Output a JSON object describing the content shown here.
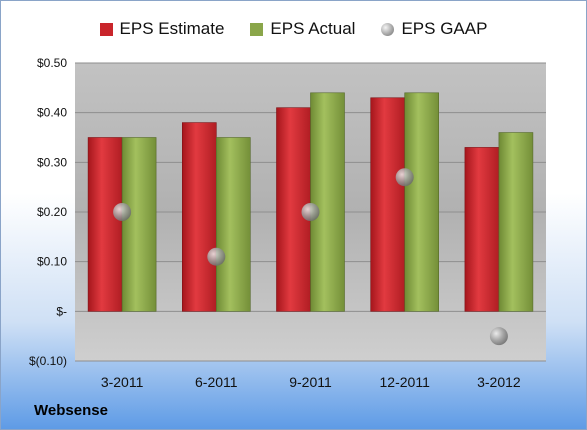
{
  "colors": {
    "estimate": "#c9252b",
    "actual": "#8aa64a",
    "gaap": "#9a9a9a"
  },
  "company": "Websense",
  "chart_data": {
    "type": "bar",
    "categories": [
      "3-2011",
      "6-2011",
      "9-2011",
      "12-2011",
      "3-2012"
    ],
    "series": [
      {
        "name": "EPS Estimate",
        "type": "bar",
        "values": [
          0.35,
          0.38,
          0.41,
          0.43,
          0.33
        ]
      },
      {
        "name": "EPS Actual",
        "type": "bar",
        "values": [
          0.35,
          0.35,
          0.44,
          0.44,
          0.36
        ]
      },
      {
        "name": "EPS GAAP",
        "type": "scatter",
        "values": [
          0.2,
          0.11,
          0.2,
          0.27,
          -0.05
        ]
      }
    ],
    "yticks": [
      0.5,
      0.4,
      0.3,
      0.2,
      0.1,
      0,
      -0.1
    ],
    "ytick_labels": [
      "$0.50",
      "$0.40",
      "$0.30",
      "$0.20",
      "$0.10",
      "$-",
      "$(0.10)"
    ],
    "ylim": [
      -0.1,
      0.5
    ],
    "grid": true,
    "legend_position": "top"
  }
}
